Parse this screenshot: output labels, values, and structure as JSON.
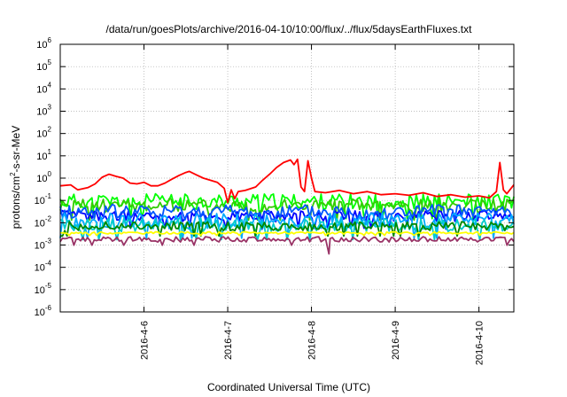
{
  "chart_data": {
    "type": "line",
    "title": "/data/run/goesPlots/archive/2016-04-10/10:00/flux/../flux/5daysEarthFluxes.txt",
    "xlabel": "Coordinated Universal Time (UTC)",
    "ylabel": "protons/cm²-s-sr-MeV",
    "ylabel_parts": {
      "pre": "protons/cm",
      "sup": "2",
      "post": "-s-sr-MeV"
    },
    "y_scale": "log",
    "ylim": [
      1e-06,
      1000000.0
    ],
    "y_ticks": [
      {
        "value": 1e-06,
        "base": "10",
        "exp": "-6"
      },
      {
        "value": 1e-05,
        "base": "10",
        "exp": "-5"
      },
      {
        "value": 0.0001,
        "base": "10",
        "exp": "-4"
      },
      {
        "value": 0.001,
        "base": "10",
        "exp": "-3"
      },
      {
        "value": 0.01,
        "base": "10",
        "exp": "-2"
      },
      {
        "value": 0.1,
        "base": "10",
        "exp": "-1"
      },
      {
        "value": 1,
        "base": "10",
        "exp": "0"
      },
      {
        "value": 10.0,
        "base": "10",
        "exp": "1"
      },
      {
        "value": 100.0,
        "base": "10",
        "exp": "2"
      },
      {
        "value": 1000.0,
        "base": "10",
        "exp": "3"
      },
      {
        "value": 10000.0,
        "base": "10",
        "exp": "4"
      },
      {
        "value": 100000.0,
        "base": "10",
        "exp": "5"
      },
      {
        "value": 1000000.0,
        "base": "10",
        "exp": "6"
      }
    ],
    "x_type": "datetime",
    "xlim": [
      "2016-04-05T00:00",
      "2016-04-10T10:00"
    ],
    "x_ticks": [
      {
        "value": "2016-04-06T00:00",
        "label": "2016-4-6"
      },
      {
        "value": "2016-04-07T00:00",
        "label": "2016-4-7"
      },
      {
        "value": "2016-04-08T00:00",
        "label": "2016-4-8"
      },
      {
        "value": "2016-04-09T00:00",
        "label": "2016-4-9"
      },
      {
        "value": "2016-04-10T00:00",
        "label": "2016-4-10"
      }
    ],
    "grid": true,
    "legend": "none",
    "series": [
      {
        "color": "#ff0000",
        "points": [
          [
            "2016-04-05T00:00",
            0.45
          ],
          [
            "2016-04-05T03:00",
            0.5
          ],
          [
            "2016-04-05T05:00",
            0.3
          ],
          [
            "2016-04-05T08:00",
            0.38
          ],
          [
            "2016-04-05T10:00",
            0.55
          ],
          [
            "2016-04-05T12:00",
            1.1
          ],
          [
            "2016-04-05T14:00",
            1.5
          ],
          [
            "2016-04-05T16:00",
            1.2
          ],
          [
            "2016-04-05T18:00",
            1.0
          ],
          [
            "2016-04-05T20:00",
            0.6
          ],
          [
            "2016-04-05T22:00",
            0.55
          ],
          [
            "2016-04-06T00:00",
            0.65
          ],
          [
            "2016-04-06T02:00",
            0.45
          ],
          [
            "2016-04-06T04:00",
            0.45
          ],
          [
            "2016-04-06T06:00",
            0.6
          ],
          [
            "2016-04-06T08:00",
            0.9
          ],
          [
            "2016-04-06T10:00",
            1.3
          ],
          [
            "2016-04-06T12:00",
            1.8
          ],
          [
            "2016-04-06T13:00",
            2.0
          ],
          [
            "2016-04-06T15:00",
            1.4
          ],
          [
            "2016-04-06T17:00",
            1.0
          ],
          [
            "2016-04-06T19:00",
            0.8
          ],
          [
            "2016-04-06T21:00",
            0.65
          ],
          [
            "2016-04-06T23:00",
            0.35
          ],
          [
            "2016-04-07T00:00",
            0.08
          ],
          [
            "2016-04-07T01:00",
            0.3
          ],
          [
            "2016-04-07T02:00",
            0.12
          ],
          [
            "2016-04-07T03:00",
            0.25
          ],
          [
            "2016-04-07T05:00",
            0.28
          ],
          [
            "2016-04-07T08:00",
            0.4
          ],
          [
            "2016-04-07T10:00",
            0.8
          ],
          [
            "2016-04-07T12:00",
            1.5
          ],
          [
            "2016-04-07T14:00",
            3.0
          ],
          [
            "2016-04-07T16:00",
            5.0
          ],
          [
            "2016-04-07T18:00",
            6.5
          ],
          [
            "2016-04-07T19:00",
            4.0
          ],
          [
            "2016-04-07T20:00",
            7.0
          ],
          [
            "2016-04-07T21:00",
            0.4
          ],
          [
            "2016-04-07T22:00",
            0.25
          ],
          [
            "2016-04-07T23:00",
            6.0
          ],
          [
            "2016-04-08T00:00",
            1.0
          ],
          [
            "2016-04-08T01:00",
            0.25
          ],
          [
            "2016-04-08T04:00",
            0.22
          ],
          [
            "2016-04-08T08:00",
            0.28
          ],
          [
            "2016-04-08T12:00",
            0.2
          ],
          [
            "2016-04-08T16:00",
            0.25
          ],
          [
            "2016-04-08T20:00",
            0.18
          ],
          [
            "2016-04-09T00:00",
            0.2
          ],
          [
            "2016-04-09T04:00",
            0.17
          ],
          [
            "2016-04-09T08:00",
            0.22
          ],
          [
            "2016-04-09T12:00",
            0.15
          ],
          [
            "2016-04-09T16:00",
            0.18
          ],
          [
            "2016-04-09T20:00",
            0.14
          ],
          [
            "2016-04-10T00:00",
            0.16
          ],
          [
            "2016-04-10T03:00",
            0.13
          ],
          [
            "2016-04-10T05:00",
            0.25
          ],
          [
            "2016-04-10T06:00",
            5.0
          ],
          [
            "2016-04-10T07:00",
            0.3
          ],
          [
            "2016-04-10T08:00",
            0.2
          ],
          [
            "2016-04-10T10:00",
            0.5
          ]
        ]
      },
      {
        "color": "#00ff00",
        "level": 0.09,
        "spread": 0.35,
        "seed": 11
      },
      {
        "color": "#33cc00",
        "level": 0.06,
        "spread": 0.3,
        "seed": 23
      },
      {
        "color": "#0000ff",
        "level": 0.02,
        "spread": 0.25,
        "seed": 37
      },
      {
        "color": "#0055ff",
        "level": 0.03,
        "spread": 0.35,
        "seed": 41
      },
      {
        "color": "#00aaff",
        "level": 0.012,
        "spread": 0.35,
        "seed": 53
      },
      {
        "color": "#00cccc",
        "level": 0.008,
        "spread": 0.3,
        "seed": 67
      },
      {
        "color": "#008800",
        "level": 0.007,
        "spread": 0.2,
        "seed": 71
      },
      {
        "color": "#ffff00",
        "level": 0.0035,
        "spread": 0.05,
        "seed": 83
      },
      {
        "color": "#993366",
        "level": 0.0018,
        "spread": 0.12,
        "seed": 97,
        "dip": {
          "x": "2016-04-08T05:00",
          "y": 0.0004
        }
      }
    ]
  }
}
